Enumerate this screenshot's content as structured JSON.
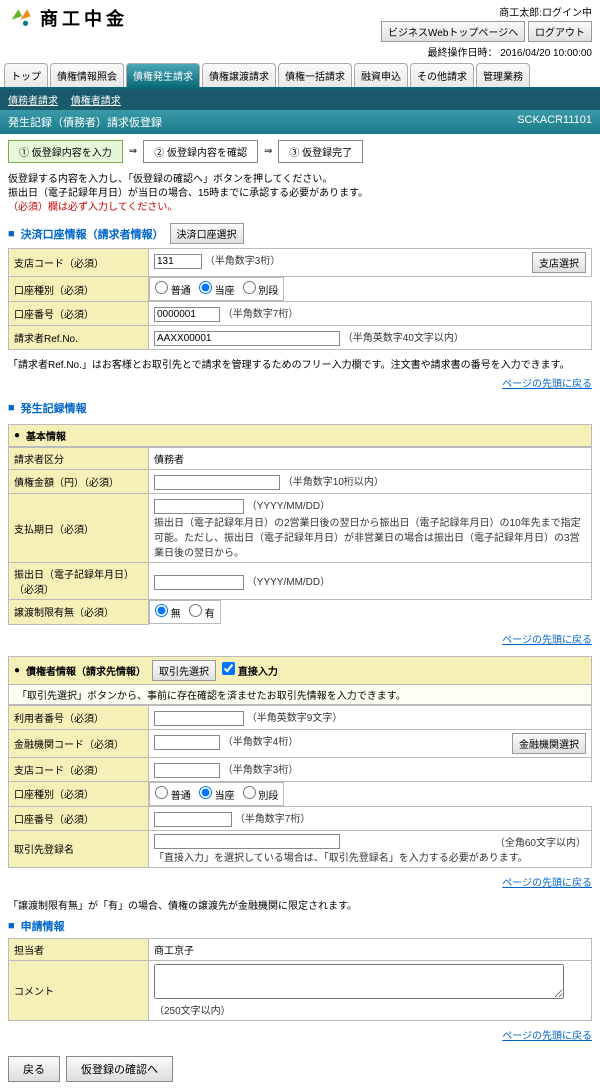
{
  "header": {
    "company": "商工中金",
    "user_status": "商工太郎:ログイン中",
    "btn_top": "ビジネスWebトップページへ",
    "btn_logout": "ログアウト",
    "last_op_label": "最終操作日時：",
    "last_op": "2016/04/20 10:00:00"
  },
  "nav": {
    "tabs": [
      "トップ",
      "債権情報照会",
      "債権発生請求",
      "債権譲渡請求",
      "債権一括請求",
      "融資申込",
      "その他請求",
      "管理業務"
    ],
    "active": 2,
    "sub": [
      "債務者請求",
      "債権者請求"
    ]
  },
  "title": {
    "text": "発生記録（債務者）請求仮登録",
    "code": "SCKACR11101"
  },
  "steps": {
    "items": [
      "① 仮登録内容を入力",
      "② 仮登録内容を確認",
      "③ 仮登録完了"
    ],
    "active": 0
  },
  "notes": {
    "intro1": "仮登録する内容を入力し、「仮登録の確認へ」ボタンを押してください。",
    "intro2": "振出日（電子記録年月日）が当日の場合、15時までに承認する必要があります。",
    "intro3": "（必須）欄は必ず入力してください。"
  },
  "section1": {
    "head": "決済口座情報（請求者情報）",
    "btn": "決済口座選択",
    "rows": {
      "branch": {
        "label": "支店コード（必須）",
        "val": "131",
        "hint": "（半角数字3桁）",
        "btn": "支店選択"
      },
      "acct_type": {
        "label": "口座種別（必須）",
        "opts": [
          "普通",
          "当座",
          "別段"
        ]
      },
      "acct_no": {
        "label": "口座番号（必須）",
        "val": "0000001",
        "hint": "（半角数字7桁）"
      },
      "ref": {
        "label": "請求者Ref.No.",
        "val": "AAXX00001",
        "hint": "（半角英数字40文字以内）"
      }
    },
    "footnote": "「請求者Ref.No.」はお客様とお取引先とで請求を管理するためのフリー入力欄です。注文書や請求書の番号を入力できます。"
  },
  "section2": {
    "head": "発生記録情報",
    "sub1": "基本情報",
    "rows": {
      "kubun": {
        "label": "請求者区分",
        "val": "債務者"
      },
      "amount": {
        "label": "債権金額（円）（必須）",
        "hint": "（半角数字10桁以内）"
      },
      "due": {
        "label": "支払期日（必須）",
        "hint1": "（YYYY/MM/DD）",
        "hint2": "振出日（電子記録年月日）の2営業日後の翌日から振出日（電子記録年月日）の10年先まで指定可能。ただし、振出日（電子記録年月日）が非営業日の場合は振出日（電子記録年月日）の3営業日後の翌日から。"
      },
      "issue": {
        "label": "振出日（電子記録年月日）（必須）",
        "hint": "（YYYY/MM/DD）"
      },
      "limit": {
        "label": "譲渡制限有無（必須）",
        "opts": [
          "無",
          "有"
        ]
      }
    },
    "sub2": "債権者情報（請求先情報）",
    "btn2": "取引先選択",
    "chk2": "直接入力",
    "note2": "「取引先選択」ボタンから、事前に存在確認を済ませたお取引先情報を入力できます。",
    "rows2": {
      "user_no": {
        "label": "利用者番号（必須）",
        "hint": "（半角英数字9文字）"
      },
      "fi_code": {
        "label": "金融機関コード（必須）",
        "hint": "（半角数字4桁）",
        "btn": "金融機関選択"
      },
      "branch2": {
        "label": "支店コード（必須）",
        "hint": "（半角数字3桁）"
      },
      "acct_type2": {
        "label": "口座種別（必須）",
        "opts": [
          "普通",
          "当座",
          "別段"
        ]
      },
      "acct_no2": {
        "label": "口座番号（必須）",
        "hint": "（半角数字7桁）"
      },
      "dest": {
        "label": "取引先登録名",
        "hint_r": "（全角60文字以内）",
        "hint_b": "「直接入力」を選択している場合は、「取引先登録名」を入力する必要があります。"
      }
    },
    "footnote2": "「譲渡制限有無」が「有」の場合、債権の譲渡先が金融機関に限定されます。"
  },
  "section3": {
    "head": "申請情報",
    "rows": {
      "person": {
        "label": "担当者",
        "val": "商工京子"
      },
      "comment": {
        "label": "コメント",
        "hint": "（250文字以内）"
      }
    }
  },
  "common": {
    "linktop": "ページの先頭に戻る",
    "back": "戻る",
    "confirm": "仮登録の確認へ"
  }
}
